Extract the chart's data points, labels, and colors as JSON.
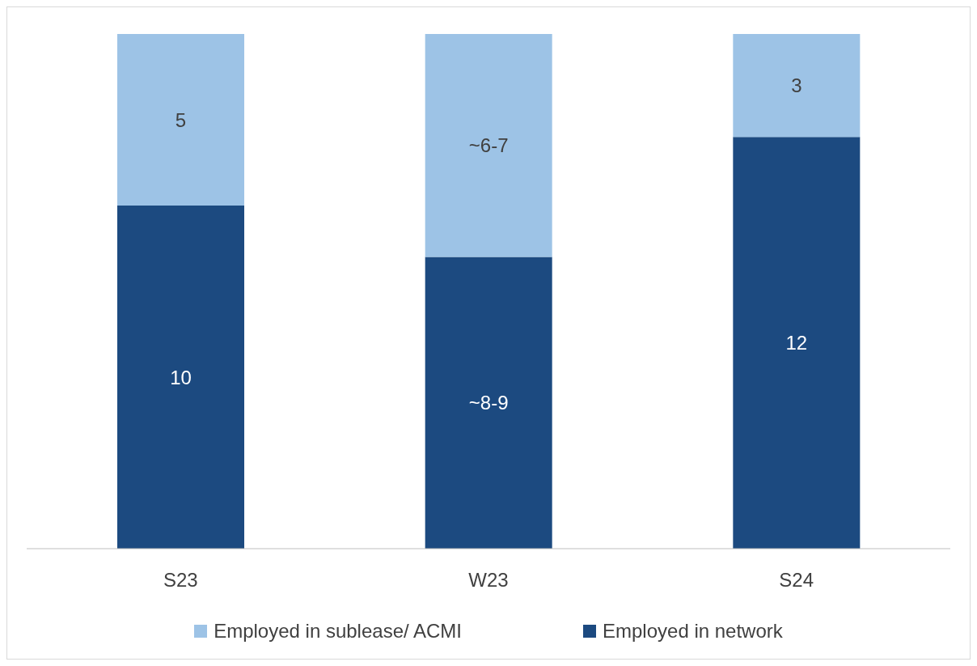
{
  "chart_data": {
    "type": "bar",
    "stacked": true,
    "categories": [
      "S23",
      "W23",
      "S24"
    ],
    "series": [
      {
        "name": "Employed in network",
        "color": "#1c4a80",
        "values": [
          10,
          8.5,
          12
        ],
        "value_labels": [
          "10",
          "~8-9",
          "12"
        ]
      },
      {
        "name": "Employed in sublease/ ACMI",
        "color": "#9dc3e6",
        "values": [
          5,
          6.5,
          3
        ],
        "value_labels": [
          "5",
          "~6-7",
          "3"
        ]
      }
    ],
    "legend": "bottom",
    "grid": false
  }
}
